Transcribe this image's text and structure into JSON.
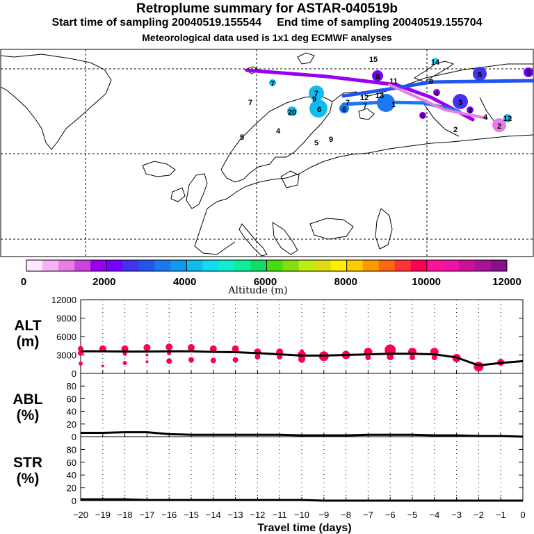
{
  "header": {
    "title": "Retroplume summary for ASTAR-040519b",
    "start_label": "Start time of sampling 20040519.155544",
    "end_label": "End time of sampling 20040519.155704",
    "meteo": "Meteorological data used is 1x1 deg ECMWF analyses"
  },
  "colorbar": {
    "colors": [
      "#ffe8ff",
      "#f5b3f5",
      "#e87de8",
      "#cc44dd",
      "#9900ee",
      "#7700ff",
      "#4433ee",
      "#2255ee",
      "#1b78ee",
      "#1199ee",
      "#11bbee",
      "#11ddee",
      "#11eecc",
      "#11ee99",
      "#11dd66",
      "#44dd11",
      "#88dd11",
      "#bbee11",
      "#dddd11",
      "#ffee00",
      "#ffcc00",
      "#ff9900",
      "#ff6611",
      "#ff3333",
      "#ff0055",
      "#ff1199",
      "#ee11aa",
      "#cc1199",
      "#aa1199",
      "#881188"
    ],
    "tick_labels": [
      "0",
      "2000",
      "4000",
      "6000",
      "8000",
      "10000",
      "12000"
    ],
    "title": "Altitude (m)"
  },
  "map": {
    "labels": [
      {
        "t": "15",
        "c": "#11ddee"
      },
      {
        "t": "14",
        "c": "#11ddee"
      },
      {
        "t": "9",
        "c": "#9900ee"
      },
      {
        "t": "8",
        "c": "#2255ee"
      },
      {
        "t": "8",
        "c": "#4433ee"
      },
      {
        "t": "11",
        "c": "#4433ee"
      },
      {
        "t": "8",
        "c": "#4433ee"
      },
      {
        "t": "4",
        "c": "#9900ee"
      },
      {
        "t": "7",
        "c": "#11bbee"
      },
      {
        "t": "7",
        "c": "#11bbee"
      },
      {
        "t": "9",
        "c": "#11bbee"
      },
      {
        "t": "6",
        "c": "#11bbee"
      },
      {
        "t": "3",
        "c": "#7700ff"
      },
      {
        "t": "2",
        "c": "#e87de8"
      },
      {
        "t": "2",
        "c": "#cc44dd"
      },
      {
        "t": "20",
        "c": "#11bbee"
      },
      {
        "t": "6",
        "c": "#1199ee"
      },
      {
        "t": "7",
        "c": "#11bbee"
      },
      {
        "t": "12",
        "c": "#11bbee"
      },
      {
        "t": "13",
        "c": "#11bbee"
      },
      {
        "t": "4",
        "c": "#7700ff"
      },
      {
        "t": "4",
        "c": "#4433ee"
      },
      {
        "t": "6",
        "c": "#9900ee"
      },
      {
        "t": "4",
        "c": "#9900ee"
      },
      {
        "t": "5",
        "c": "#4433ee"
      },
      {
        "t": "9",
        "c": "#4433ee"
      },
      {
        "t": "12",
        "c": "#11bbee"
      },
      {
        "t": "5",
        "c": "#11bbee"
      },
      {
        "t": "7",
        "c": "#1b78ee"
      },
      {
        "t": "7",
        "c": "#1b78ee"
      },
      {
        "t": "1",
        "c": "#cc44dd"
      }
    ]
  },
  "panels": {
    "alt_label": "ALT",
    "alt_unit": "(m)",
    "abl_label": "ABL",
    "abl_unit": "(%)",
    "str_label": "STR",
    "str_unit": "(%)",
    "xaxis_title": "Travel time (days)"
  },
  "chart_data": [
    {
      "type": "line",
      "title": "ALT",
      "ylabel": "(m)",
      "xlabel": "Travel time (days)",
      "xlim": [
        -20,
        0
      ],
      "ylim": [
        0,
        12000
      ],
      "y_ticks": [
        0,
        3000,
        6000,
        9000,
        12000
      ],
      "x_ticks": [
        -20,
        -19,
        -18,
        -17,
        -16,
        -15,
        -14,
        -13,
        -12,
        -11,
        -10,
        -9,
        -8,
        -7,
        -6,
        -5,
        -4,
        -3,
        -2,
        -1,
        0
      ],
      "x": [
        -20,
        -19,
        -18,
        -17,
        -16,
        -15,
        -14,
        -13,
        -12,
        -11,
        -10,
        -9,
        -8,
        -7,
        -6,
        -5,
        -4,
        -3,
        -2,
        -1,
        0
      ],
      "y": [
        3600,
        3600,
        3550,
        3550,
        3600,
        3600,
        3500,
        3450,
        3300,
        3100,
        2900,
        2900,
        3000,
        3100,
        3200,
        3200,
        3100,
        2600,
        1300,
        1700,
        2000
      ],
      "cluster_points": [
        {
          "x": -20,
          "y": 4000,
          "s": 4
        },
        {
          "x": -20,
          "y": 3300,
          "s": 4
        },
        {
          "x": -20,
          "y": 1600,
          "s": 3
        },
        {
          "x": -19,
          "y": 4000,
          "s": 5
        },
        {
          "x": -19,
          "y": 1200,
          "s": 2
        },
        {
          "x": -18,
          "y": 4000,
          "s": 5
        },
        {
          "x": -18,
          "y": 3200,
          "s": 3
        },
        {
          "x": -18,
          "y": 1700,
          "s": 3
        },
        {
          "x": -17,
          "y": 4200,
          "s": 5
        },
        {
          "x": -17,
          "y": 3000,
          "s": 2
        },
        {
          "x": -17,
          "y": 1900,
          "s": 2
        },
        {
          "x": -16,
          "y": 4300,
          "s": 5
        },
        {
          "x": -16,
          "y": 3300,
          "s": 3
        },
        {
          "x": -16,
          "y": 2000,
          "s": 4
        },
        {
          "x": -15,
          "y": 4200,
          "s": 5
        },
        {
          "x": -15,
          "y": 2200,
          "s": 4
        },
        {
          "x": -14,
          "y": 4000,
          "s": 5
        },
        {
          "x": -14,
          "y": 2100,
          "s": 4
        },
        {
          "x": -13,
          "y": 4000,
          "s": 5
        },
        {
          "x": -13,
          "y": 2200,
          "s": 4
        },
        {
          "x": -12,
          "y": 3500,
          "s": 5
        },
        {
          "x": -12,
          "y": 2700,
          "s": 4
        },
        {
          "x": -11,
          "y": 3500,
          "s": 5
        },
        {
          "x": -11,
          "y": 2700,
          "s": 4
        },
        {
          "x": -10,
          "y": 3000,
          "s": 6
        },
        {
          "x": -10,
          "y": 2300,
          "s": 5
        },
        {
          "x": -10,
          "y": 3600,
          "s": 3
        },
        {
          "x": -9,
          "y": 2800,
          "s": 7
        },
        {
          "x": -8,
          "y": 3000,
          "s": 6
        },
        {
          "x": -7,
          "y": 3500,
          "s": 6
        },
        {
          "x": -7,
          "y": 2600,
          "s": 4
        },
        {
          "x": -6,
          "y": 3800,
          "s": 8
        },
        {
          "x": -6,
          "y": 2700,
          "s": 5
        },
        {
          "x": -5,
          "y": 3500,
          "s": 6
        },
        {
          "x": -5,
          "y": 2600,
          "s": 4
        },
        {
          "x": -4,
          "y": 3500,
          "s": 6
        },
        {
          "x": -4,
          "y": 2600,
          "s": 4
        },
        {
          "x": -3,
          "y": 2500,
          "s": 6
        },
        {
          "x": -2,
          "y": 1100,
          "s": 7
        },
        {
          "x": -1,
          "y": 1800,
          "s": 5
        }
      ]
    },
    {
      "type": "line",
      "title": "ABL",
      "ylabel": "(%)",
      "xlabel": "Travel time (days)",
      "xlim": [
        -20,
        0
      ],
      "ylim": [
        0,
        100
      ],
      "y_ticks": [
        0,
        20,
        40,
        60,
        80
      ],
      "x": [
        -20,
        -19,
        -18,
        -17,
        -16,
        -15,
        -14,
        -13,
        -12,
        -11,
        -10,
        -9,
        -8,
        -7,
        -6,
        -5,
        -4,
        -3,
        -2,
        -1,
        0
      ],
      "y": [
        6,
        6,
        7,
        7,
        4,
        3,
        3,
        3,
        3,
        3,
        2,
        2,
        2,
        3,
        3,
        3,
        2,
        2,
        1,
        1,
        0
      ]
    },
    {
      "type": "line",
      "title": "STR",
      "ylabel": "(%)",
      "xlabel": "Travel time (days)",
      "xlim": [
        -20,
        0
      ],
      "ylim": [
        0,
        100
      ],
      "y_ticks": [
        0,
        20,
        40,
        60,
        80
      ],
      "x": [
        -20,
        -19,
        -18,
        -17,
        -16,
        -15,
        -14,
        -13,
        -12,
        -11,
        -10,
        -9,
        -8,
        -7,
        -6,
        -5,
        -4,
        -3,
        -2,
        -1,
        0
      ],
      "y": [
        2,
        2,
        2,
        1,
        1,
        1,
        1,
        1,
        1,
        1,
        1,
        0,
        0,
        0,
        0,
        0,
        0,
        0,
        0,
        0,
        0
      ]
    }
  ]
}
